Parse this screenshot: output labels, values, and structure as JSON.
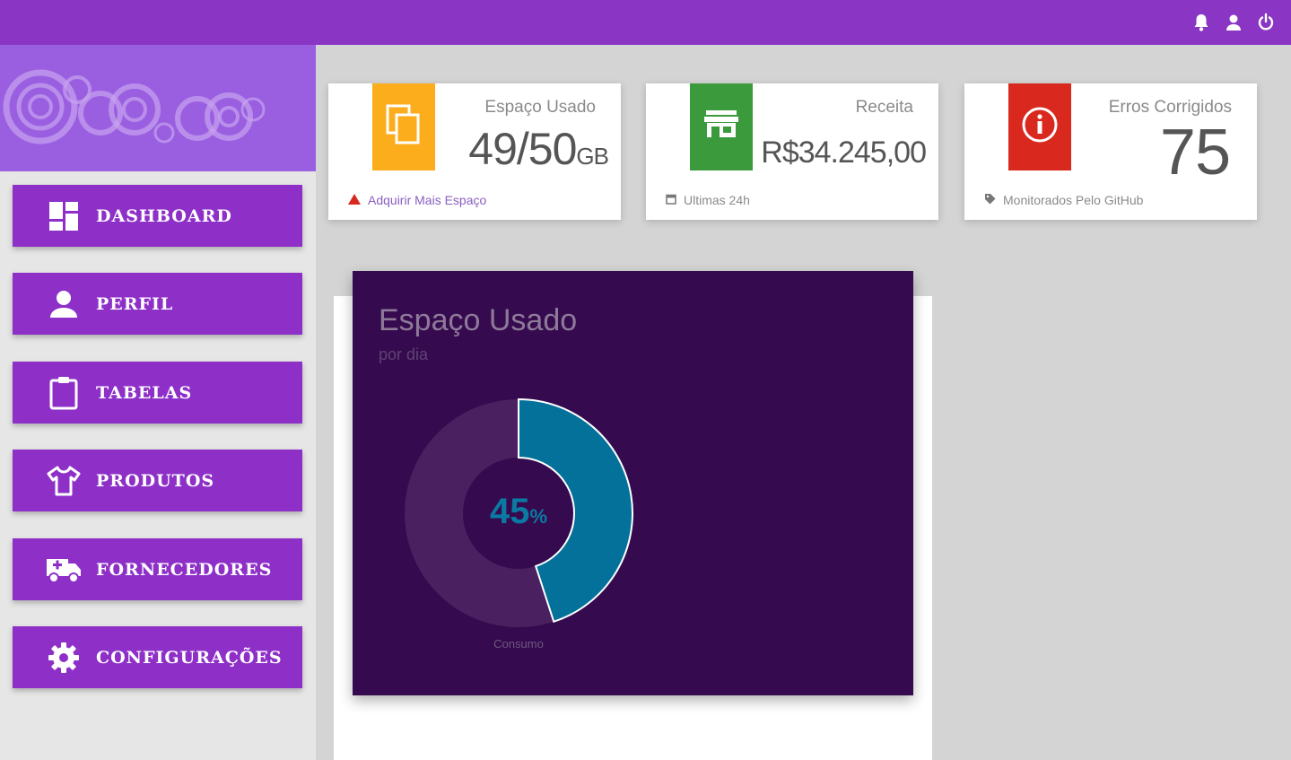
{
  "topbar": {
    "icons": [
      "bell-icon",
      "user-icon",
      "power-icon"
    ]
  },
  "sidebar": {
    "items": [
      {
        "label": "DASHBOARD",
        "icon": "dashboard-icon"
      },
      {
        "label": "PERFIL",
        "icon": "person-icon"
      },
      {
        "label": "TABELAS",
        "icon": "clipboard-icon"
      },
      {
        "label": "PRODUTOS",
        "icon": "shirt-icon"
      },
      {
        "label": "FORNECEDORES",
        "icon": "truck-icon"
      },
      {
        "label": "CONFIGURAÇÕES",
        "icon": "gear-icon"
      }
    ]
  },
  "cards": [
    {
      "title": "Espaço Usado",
      "value": "49/50",
      "unit": "GB",
      "footer": "Adquirir Mais Espaço",
      "color": "#fbad1b",
      "icon": "copy-icon",
      "footer_icon": "warning-icon"
    },
    {
      "title": "Receita",
      "value": "R$34.245,00",
      "unit": "",
      "footer": "Ultimas 24h",
      "color": "#3a9a3c",
      "icon": "store-icon",
      "footer_icon": "calendar-icon"
    },
    {
      "title": "Erros Corrigidos",
      "value": "75",
      "unit": "",
      "footer": "Monitorados Pelo GitHub",
      "color": "#d9281e",
      "icon": "info-icon",
      "footer_icon": "tag-icon"
    }
  ],
  "chart_data": {
    "type": "pie",
    "title": "Espaço Usado",
    "subtitle": "por dia",
    "categories": [
      "Consumo"
    ],
    "values": [
      45
    ],
    "center_label": "45",
    "center_unit": "%",
    "colors": {
      "filled": "#04719b",
      "remaining": "#4a2060",
      "background": "#360a4e"
    }
  }
}
